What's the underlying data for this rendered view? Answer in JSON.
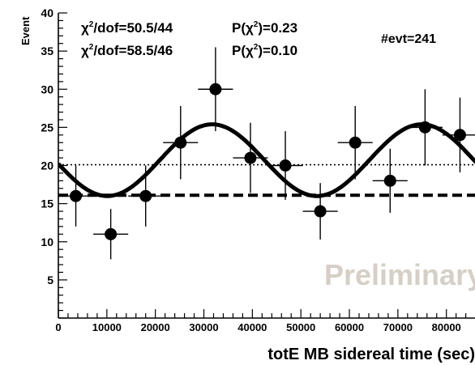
{
  "chart_data": {
    "type": "scatter",
    "xlabel": "totE MB sidereal time (sec)",
    "ylabel": "Event",
    "xlim": [
      0,
      86400
    ],
    "ylim": [
      0,
      40
    ],
    "x_ticks": [
      0,
      10000,
      20000,
      30000,
      40000,
      50000,
      60000,
      70000,
      80000
    ],
    "x_tick_labels": [
      "0",
      "10000",
      "20000",
      "30000",
      "40000",
      "50000",
      "60000",
      "70000",
      "80000"
    ],
    "y_ticks": [
      5,
      10,
      15,
      20,
      25,
      30,
      35,
      40
    ],
    "y_tick_labels": [
      "5",
      "10",
      "15",
      "20",
      "25",
      "30",
      "35",
      "40"
    ],
    "points": [
      {
        "x": 3600,
        "y": 16,
        "xerr": 3600,
        "yerr": 4.0
      },
      {
        "x": 10800,
        "y": 11,
        "xerr": 3600,
        "yerr": 3.3
      },
      {
        "x": 18000,
        "y": 16,
        "xerr": 3600,
        "yerr": 4.0
      },
      {
        "x": 25200,
        "y": 23,
        "xerr": 3600,
        "yerr": 4.8
      },
      {
        "x": 32400,
        "y": 30,
        "xerr": 3600,
        "yerr": 5.5
      },
      {
        "x": 39600,
        "y": 21,
        "xerr": 3600,
        "yerr": 4.6
      },
      {
        "x": 46800,
        "y": 20,
        "xerr": 3600,
        "yerr": 4.5
      },
      {
        "x": 54000,
        "y": 14,
        "xerr": 3600,
        "yerr": 3.7
      },
      {
        "x": 61200,
        "y": 23,
        "xerr": 3600,
        "yerr": 4.8
      },
      {
        "x": 68400,
        "y": 18,
        "xerr": 3600,
        "yerr": 4.2
      },
      {
        "x": 75600,
        "y": 25,
        "xerr": 3600,
        "yerr": 5.0
      },
      {
        "x": 82800,
        "y": 24,
        "xerr": 3600,
        "yerr": 4.9
      }
    ],
    "fits": [
      {
        "kind": "sinusoid",
        "style": "solid",
        "mean": 20.7,
        "amplitude": 4.7,
        "period": 43200,
        "phase_peak_x": 31700
      },
      {
        "kind": "constant",
        "style": "dashed",
        "value": 16.1
      },
      {
        "kind": "constant",
        "style": "dotted",
        "value": 20.1
      }
    ],
    "annotations": {
      "chi2_lines": [
        {
          "chi2_prefix": "χ",
          "chi2_suffix": "/dof=50.5/44",
          "prob_prefix": "P(χ",
          "prob_suffix": ")=0.23"
        },
        {
          "chi2_prefix": "χ",
          "chi2_suffix": "/dof=58.5/46",
          "prob_prefix": "P(χ",
          "prob_suffix": ")=0.10"
        }
      ],
      "superscript": "2",
      "nevt": "#evt=241",
      "watermark": "Preliminary"
    },
    "colors": {
      "markers": "#000000",
      "watermark": "#d6cfc6"
    }
  }
}
